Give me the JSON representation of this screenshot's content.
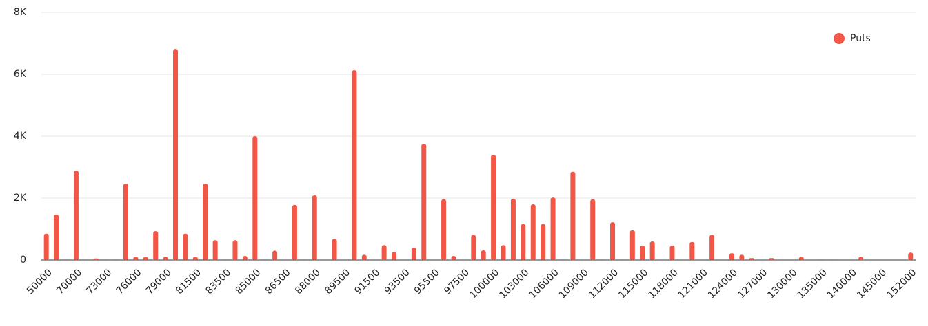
{
  "chart_data": {
    "type": "bar",
    "categories": [
      "50000",
      null,
      null,
      "70000",
      null,
      null,
      "73000",
      null,
      null,
      "76000",
      null,
      null,
      "79000",
      null,
      null,
      "81500",
      null,
      null,
      "83500",
      null,
      null,
      "85000",
      null,
      null,
      "86500",
      null,
      null,
      "88000",
      null,
      null,
      "89500",
      null,
      null,
      "91500",
      null,
      null,
      "93500",
      null,
      null,
      "95500",
      null,
      null,
      "97500",
      null,
      null,
      "100000",
      null,
      null,
      "103000",
      null,
      null,
      "106000",
      null,
      null,
      "109000",
      null,
      null,
      "112000",
      null,
      null,
      "115000",
      null,
      null,
      "118000",
      null,
      null,
      "121000",
      null,
      null,
      "124000",
      null,
      null,
      "127000",
      null,
      null,
      "130000",
      null,
      null,
      "135000",
      null,
      null,
      "140000",
      null,
      null,
      "145000",
      null,
      null,
      "152000"
    ],
    "series": [
      {
        "name": "Puts",
        "color": "#f25646",
        "values": [
          850,
          1470,
          20,
          2890,
          20,
          50,
          20,
          20,
          2470,
          90,
          90,
          930,
          90,
          6820,
          850,
          90,
          2470,
          640,
          20,
          640,
          130,
          4000,
          20,
          300,
          0,
          1780,
          20,
          2090,
          0,
          680,
          0,
          6130,
          170,
          0,
          480,
          260,
          0,
          400,
          3750,
          0,
          1960,
          130,
          0,
          810,
          310,
          3400,
          480,
          1980,
          1160,
          1800,
          1160,
          2020,
          20,
          2850,
          0,
          1960,
          20,
          1220,
          20,
          960,
          470,
          600,
          0,
          470,
          0,
          580,
          0,
          810,
          0,
          220,
          170,
          60,
          0,
          60,
          0,
          0,
          90,
          0,
          20,
          20,
          0,
          0,
          90,
          0,
          0,
          0,
          0,
          240
        ]
      }
    ],
    "ylim": [
      0,
      8000
    ],
    "yticks": [
      0,
      {
        "value": 2000,
        "label": "2K"
      },
      {
        "value": 4000,
        "label": "4K"
      },
      {
        "value": 6000,
        "label": "6K"
      },
      {
        "value": 8000,
        "label": "8K"
      }
    ],
    "grid": true,
    "legend": "top-right"
  }
}
